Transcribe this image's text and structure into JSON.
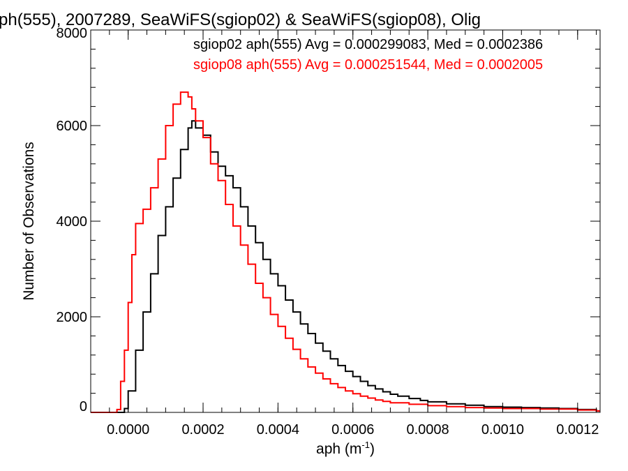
{
  "chart_data": {
    "type": "line",
    "style": "step-histogram",
    "title": "ph(555), 2007289, SeaWiFS(sgiop02) & SeaWiFS(sgiop08), Olig",
    "xlabel": "aph (m",
    "xlabel_sup": "-1",
    "xlabel_close": ")",
    "ylabel": "Number of Observations",
    "xlim": [
      -0.0001,
      0.00126
    ],
    "ylim": [
      0,
      8000
    ],
    "grid": false,
    "x_ticks": [
      0.0,
      0.0002,
      0.0004,
      0.0006,
      0.0008,
      0.001,
      0.0012
    ],
    "x_tick_labels": [
      "0.0000",
      "0.0002",
      "0.0004",
      "0.0006",
      "0.0008",
      "0.0010",
      "0.0012"
    ],
    "y_ticks": [
      0,
      2000,
      4000,
      6000,
      8000
    ],
    "y_tick_labels": [
      "0",
      "2000",
      "4000",
      "6000",
      "8000"
    ],
    "series": [
      {
        "name": "sgiop02",
        "color": "#000000",
        "stats_text": "sgiop02 aph(555) Avg = 0.000299083, Med = 0.0002386",
        "points": [
          [
            -0.0001,
            0
          ],
          [
            -2e-05,
            0
          ],
          [
            -1e-05,
            80
          ],
          [
            0.0,
            450
          ],
          [
            2e-05,
            1300
          ],
          [
            4e-05,
            2100
          ],
          [
            6e-05,
            2900
          ],
          [
            8e-05,
            3700
          ],
          [
            0.0001,
            4300
          ],
          [
            0.00012,
            4900
          ],
          [
            0.00014,
            5500
          ],
          [
            0.00016,
            5950
          ],
          [
            0.00017,
            6100
          ],
          [
            0.00018,
            5950
          ],
          [
            0.0002,
            5800
          ],
          [
            0.00022,
            5450
          ],
          [
            0.00024,
            5150
          ],
          [
            0.00026,
            4950
          ],
          [
            0.00028,
            4700
          ],
          [
            0.0003,
            4300
          ],
          [
            0.00032,
            3900
          ],
          [
            0.00034,
            3550
          ],
          [
            0.00036,
            3200
          ],
          [
            0.00038,
            2900
          ],
          [
            0.0004,
            2650
          ],
          [
            0.00042,
            2350
          ],
          [
            0.00044,
            2100
          ],
          [
            0.00046,
            1850
          ],
          [
            0.00048,
            1650
          ],
          [
            0.0005,
            1450
          ],
          [
            0.00052,
            1280
          ],
          [
            0.00054,
            1120
          ],
          [
            0.00056,
            980
          ],
          [
            0.00058,
            860
          ],
          [
            0.0006,
            750
          ],
          [
            0.00062,
            650
          ],
          [
            0.00064,
            560
          ],
          [
            0.00066,
            490
          ],
          [
            0.00068,
            430
          ],
          [
            0.0007,
            380
          ],
          [
            0.00072,
            340
          ],
          [
            0.00075,
            290
          ],
          [
            0.00078,
            250
          ],
          [
            0.0008,
            220
          ],
          [
            0.00085,
            180
          ],
          [
            0.0009,
            150
          ],
          [
            0.00095,
            120
          ],
          [
            0.001,
            110
          ],
          [
            0.00105,
            100
          ],
          [
            0.0011,
            90
          ],
          [
            0.00115,
            80
          ],
          [
            0.0012,
            60
          ],
          [
            0.00125,
            30
          ]
        ]
      },
      {
        "name": "sgiop08",
        "color": "#ff0000",
        "stats_text": "sgiop08 aph(555) Avg = 0.000251544, Med = 0.0002005",
        "points": [
          [
            -0.0001,
            0
          ],
          [
            -4e-05,
            0
          ],
          [
            -3e-05,
            60
          ],
          [
            -2e-05,
            650
          ],
          [
            -1e-05,
            1300
          ],
          [
            0.0,
            2300
          ],
          [
            1e-05,
            3300
          ],
          [
            2e-05,
            3950
          ],
          [
            4e-05,
            4250
          ],
          [
            6e-05,
            4700
          ],
          [
            8e-05,
            5300
          ],
          [
            0.0001,
            6000
          ],
          [
            0.00012,
            6450
          ],
          [
            0.00014,
            6700
          ],
          [
            0.00016,
            6600
          ],
          [
            0.00017,
            6350
          ],
          [
            0.00018,
            6100
          ],
          [
            0.0002,
            5750
          ],
          [
            0.00022,
            5200
          ],
          [
            0.00024,
            4850
          ],
          [
            0.00026,
            4350
          ],
          [
            0.00028,
            3900
          ],
          [
            0.0003,
            3500
          ],
          [
            0.00032,
            3100
          ],
          [
            0.00034,
            2700
          ],
          [
            0.00036,
            2400
          ],
          [
            0.00038,
            2050
          ],
          [
            0.0004,
            1800
          ],
          [
            0.00042,
            1550
          ],
          [
            0.00044,
            1320
          ],
          [
            0.00046,
            1120
          ],
          [
            0.00048,
            950
          ],
          [
            0.0005,
            820
          ],
          [
            0.00052,
            700
          ],
          [
            0.00054,
            600
          ],
          [
            0.00056,
            520
          ],
          [
            0.00058,
            450
          ],
          [
            0.0006,
            390
          ],
          [
            0.00062,
            340
          ],
          [
            0.00064,
            300
          ],
          [
            0.00066,
            260
          ],
          [
            0.00068,
            230
          ],
          [
            0.0007,
            200
          ],
          [
            0.00075,
            170
          ],
          [
            0.0008,
            140
          ],
          [
            0.00085,
            120
          ],
          [
            0.0009,
            100
          ],
          [
            0.00095,
            90
          ],
          [
            0.001,
            80
          ],
          [
            0.0011,
            70
          ],
          [
            0.0012,
            50
          ],
          [
            0.00125,
            30
          ]
        ]
      }
    ]
  }
}
